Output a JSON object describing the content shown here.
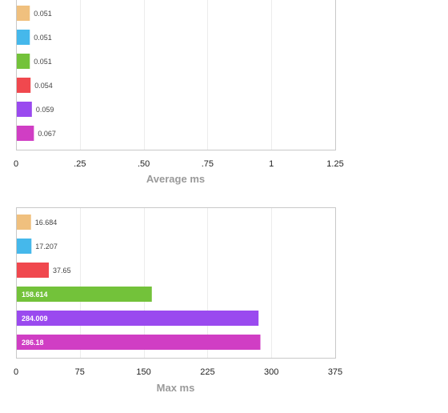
{
  "colors": {
    "orange": "#F0C07E",
    "blue": "#45B8EB",
    "green": "#73C23A",
    "red": "#F0484E",
    "purple": "#9A4AEF",
    "magenta": "#D03EC4"
  },
  "chart_data": [
    {
      "type": "bar",
      "orientation": "horizontal",
      "xlabel": "Average ms",
      "xlim": [
        0,
        1.25
      ],
      "ticks": [
        0,
        0.25,
        0.5,
        0.75,
        1,
        1.25
      ],
      "tick_labels": [
        "0",
        ".25",
        ".50",
        ".75",
        "1",
        "1.25"
      ],
      "grid": true,
      "values": [
        0.051,
        0.051,
        0.051,
        0.054,
        0.059,
        0.067
      ],
      "value_labels": [
        "0.051",
        "0.051",
        "0.051",
        "0.054",
        "0.059",
        "0.067"
      ],
      "bar_colors": [
        "#F0C07E",
        "#45B8EB",
        "#73C23A",
        "#F0484E",
        "#9A4AEF",
        "#D03EC4"
      ]
    },
    {
      "type": "bar",
      "orientation": "horizontal",
      "xlabel": "Max ms",
      "xlim": [
        0,
        375
      ],
      "ticks": [
        0,
        75,
        150,
        225,
        300,
        375
      ],
      "tick_labels": [
        "0",
        "75",
        "150",
        "225",
        "300",
        "375"
      ],
      "grid": true,
      "values": [
        16.684,
        17.207,
        37.65,
        158.614,
        284.009,
        286.18
      ],
      "value_labels": [
        "16.684",
        "17.207",
        "37.65",
        "158.614",
        "284.009",
        "286.18"
      ],
      "bar_colors": [
        "#F0C07E",
        "#45B8EB",
        "#F0484E",
        "#73C23A",
        "#9A4AEF",
        "#D03EC4"
      ]
    }
  ]
}
